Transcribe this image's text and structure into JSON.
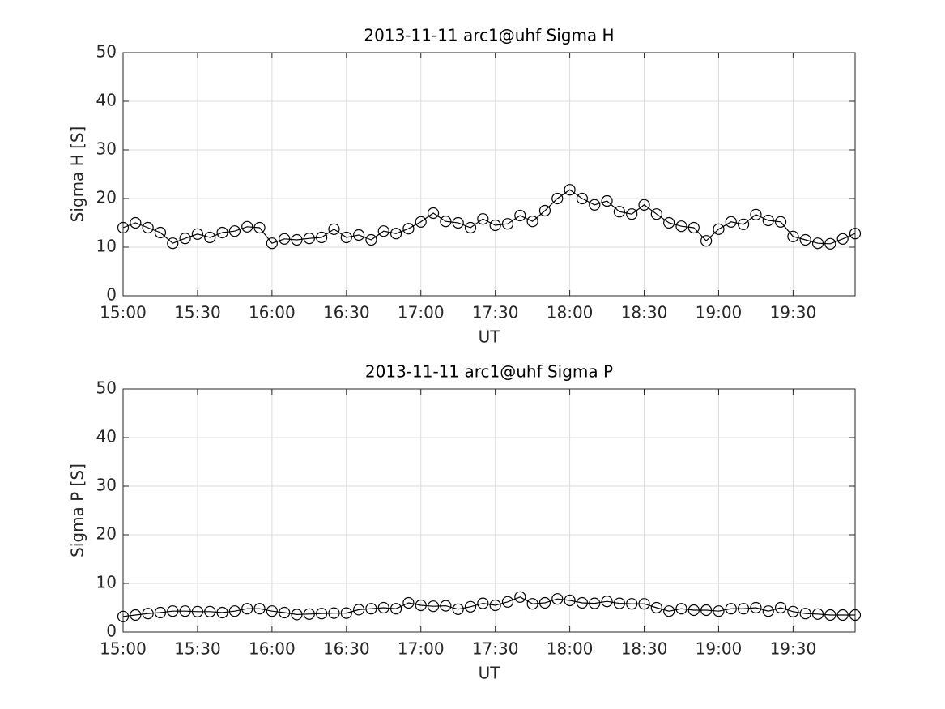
{
  "chart_data": [
    {
      "type": "line",
      "title": "2013-11-11  arc1@uhf Sigma H",
      "xlabel": "UT",
      "ylabel": "Sigma H [S]",
      "x": [
        "15:00",
        "15:05",
        "15:10",
        "15:15",
        "15:20",
        "15:25",
        "15:30",
        "15:35",
        "15:40",
        "15:45",
        "15:50",
        "15:55",
        "16:00",
        "16:05",
        "16:10",
        "16:15",
        "16:20",
        "16:25",
        "16:30",
        "16:35",
        "16:40",
        "16:45",
        "16:50",
        "16:55",
        "17:00",
        "17:05",
        "17:10",
        "17:15",
        "17:20",
        "17:25",
        "17:30",
        "17:35",
        "17:40",
        "17:45",
        "17:50",
        "17:55",
        "18:00",
        "18:05",
        "18:10",
        "18:15",
        "18:20",
        "18:25",
        "18:30",
        "18:35",
        "18:40",
        "18:45",
        "18:50",
        "18:55",
        "19:00",
        "19:05",
        "19:10",
        "19:15",
        "19:20",
        "19:25",
        "19:30",
        "19:35",
        "19:40",
        "19:45",
        "19:50",
        "19:55"
      ],
      "series": [
        {
          "color": "#000000",
          "marker": "circle",
          "values": [
            14,
            15,
            14,
            13,
            10.8,
            11.8,
            12.7,
            12,
            13,
            13.3,
            14.2,
            14,
            10.8,
            11.7,
            11.5,
            11.8,
            12,
            13.7,
            12,
            12.5,
            11.5,
            13.3,
            12.8,
            13.8,
            15.2,
            17,
            15.3,
            15,
            14,
            15.8,
            14.5,
            14.8,
            16.5,
            15.3,
            17.5,
            20,
            21.8,
            20,
            18.7,
            19.5,
            17.3,
            16.8,
            18.7,
            16.8,
            15,
            14.3,
            14,
            11.3,
            13.7,
            15.2,
            14.7,
            16.7,
            15.5,
            15.2,
            12.2,
            11.5,
            10.8,
            10.7,
            11.7,
            12.8
          ]
        }
      ],
      "xlim": [
        "15:00",
        "19:55"
      ],
      "xticks": [
        "15:00",
        "15:30",
        "16:00",
        "16:30",
        "17:00",
        "17:30",
        "18:00",
        "18:30",
        "19:00",
        "19:30"
      ],
      "ylim": [
        0,
        50
      ],
      "yticks": [
        0,
        10,
        20,
        30,
        40,
        50
      ],
      "grid": true
    },
    {
      "type": "line",
      "title": "2013-11-11  arc1@uhf Sigma P",
      "xlabel": "UT",
      "ylabel": "Sigma P [S]",
      "x": [
        "15:00",
        "15:05",
        "15:10",
        "15:15",
        "15:20",
        "15:25",
        "15:30",
        "15:35",
        "15:40",
        "15:45",
        "15:50",
        "15:55",
        "16:00",
        "16:05",
        "16:10",
        "16:15",
        "16:20",
        "16:25",
        "16:30",
        "16:35",
        "16:40",
        "16:45",
        "16:50",
        "16:55",
        "17:00",
        "17:05",
        "17:10",
        "17:15",
        "17:20",
        "17:25",
        "17:30",
        "17:35",
        "17:40",
        "17:45",
        "17:50",
        "17:55",
        "18:00",
        "18:05",
        "18:10",
        "18:15",
        "18:20",
        "18:25",
        "18:30",
        "18:35",
        "18:40",
        "18:45",
        "18:50",
        "18:55",
        "19:00",
        "19:05",
        "19:10",
        "19:15",
        "19:20",
        "19:25",
        "19:30",
        "19:35",
        "19:40",
        "19:45",
        "19:50",
        "19:55"
      ],
      "series": [
        {
          "color": "#000000",
          "marker": "circle",
          "values": [
            3.2,
            3.5,
            3.8,
            4.0,
            4.3,
            4.3,
            4.2,
            4.2,
            4.0,
            4.3,
            4.8,
            4.8,
            4.3,
            4.0,
            3.6,
            3.7,
            3.8,
            3.9,
            3.9,
            4.6,
            4.8,
            5.0,
            4.8,
            6.0,
            5.5,
            5.3,
            5.4,
            4.7,
            5.2,
            5.9,
            5.5,
            6.2,
            7.2,
            5.8,
            6.0,
            6.8,
            6.5,
            6.0,
            5.9,
            6.3,
            5.9,
            5.8,
            5.8,
            5.0,
            4.3,
            4.8,
            4.5,
            4.5,
            4.3,
            4.8,
            4.8,
            5.0,
            4.3,
            5.0,
            4.2,
            3.8,
            3.7,
            3.5,
            3.5,
            3.5
          ]
        }
      ],
      "xlim": [
        "15:00",
        "19:55"
      ],
      "xticks": [
        "15:00",
        "15:30",
        "16:00",
        "16:30",
        "17:00",
        "17:30",
        "18:00",
        "18:30",
        "19:00",
        "19:30"
      ],
      "ylim": [
        0,
        50
      ],
      "yticks": [
        0,
        10,
        20,
        30,
        40,
        50
      ],
      "grid": true
    }
  ]
}
